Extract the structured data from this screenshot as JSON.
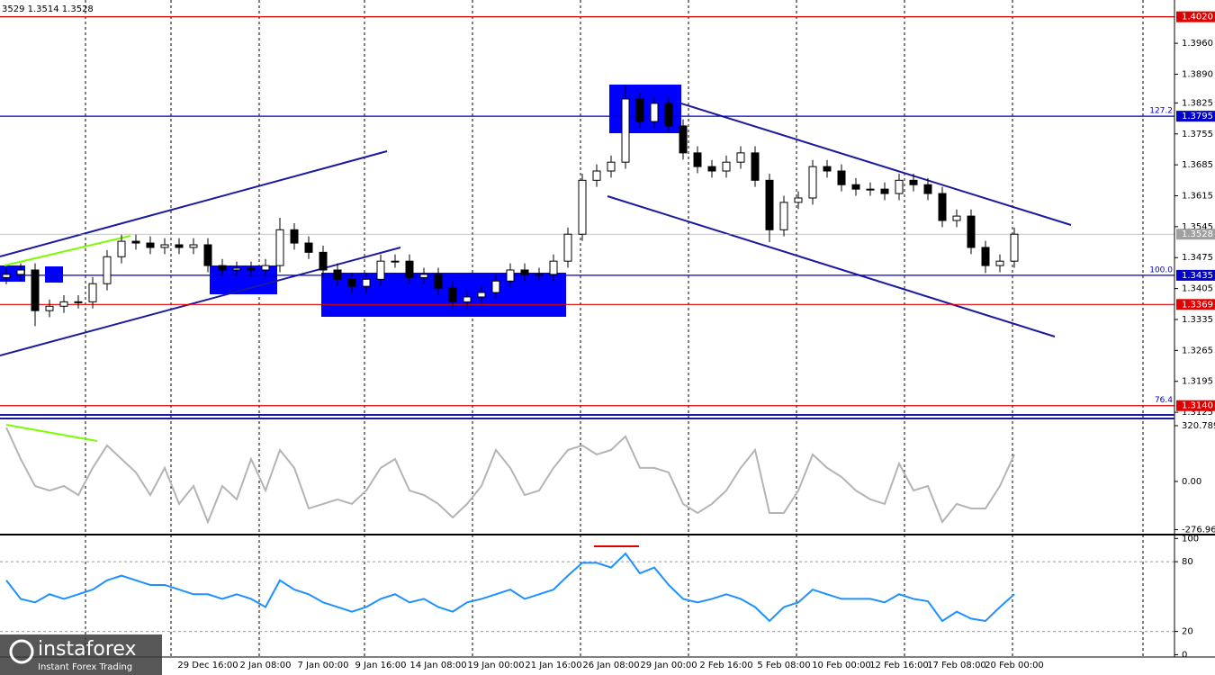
{
  "header": "3529 1.3514 1.3528",
  "logo": {
    "brand": "instaforex",
    "tagline": "Instant Forex Trading"
  },
  "chart_data": [
    {
      "type": "candlestick",
      "categories": [
        null,
        null,
        null,
        null,
        null,
        null,
        null,
        null,
        null,
        null,
        null,
        null,
        null,
        null,
        "29 Dec 16:00",
        null,
        null,
        null,
        "2 Jan 08:00",
        null,
        null,
        null,
        "7 Jan 00:00",
        null,
        null,
        null,
        "9 Jan 16:00",
        null,
        null,
        null,
        "14 Jan 08:00",
        null,
        null,
        null,
        "19 Jan 00:00",
        null,
        null,
        null,
        "21 Jan 16:00",
        null,
        null,
        null,
        "26 Jan 08:00",
        null,
        null,
        null,
        "29 Jan 00:00",
        null,
        null,
        null,
        "2 Feb 16:00",
        null,
        null,
        null,
        "5 Feb 08:00",
        null,
        null,
        null,
        "10 Feb 00:00",
        null,
        null,
        null,
        "12 Feb 16:00",
        null,
        null,
        null,
        "17 Feb 08:00",
        null,
        null,
        null,
        "20 Feb 00:00"
      ],
      "open": [
        1.343,
        1.3437,
        1.3447,
        1.3355,
        1.3365,
        1.3375,
        1.3375,
        1.3416,
        1.3477,
        1.3512,
        1.3508,
        1.3498,
        1.3504,
        1.3498,
        1.3504,
        1.3457,
        1.3447,
        1.3451,
        1.3447,
        1.3457,
        1.3538,
        1.3508,
        1.3487,
        1.3447,
        1.3426,
        1.341,
        1.3426,
        1.3467,
        1.3467,
        1.343,
        1.3437,
        1.3406,
        1.3375,
        1.3386,
        1.3396,
        1.3422,
        1.3447,
        1.3437,
        1.3437,
        1.3467,
        1.3528,
        1.365,
        1.3671,
        1.3691,
        1.3834,
        1.3783,
        1.3824,
        1.3773,
        1.3712,
        1.3681,
        1.3671,
        1.3691,
        1.3712,
        1.365,
        1.3538,
        1.36,
        1.361,
        1.3681,
        1.3671,
        1.364,
        1.363,
        1.363,
        1.362,
        1.365,
        1.364,
        1.362,
        1.3559,
        1.3569,
        1.3498,
        1.3457,
        1.3467
      ],
      "high": [
        1.3452,
        1.3462,
        1.3462,
        1.338,
        1.339,
        1.339,
        1.3431,
        1.3492,
        1.3527,
        1.3527,
        1.3523,
        1.3519,
        1.3519,
        1.3519,
        1.3519,
        1.3472,
        1.3466,
        1.3466,
        1.3472,
        1.3565,
        1.3553,
        1.3523,
        1.3502,
        1.3462,
        1.3441,
        1.3441,
        1.3482,
        1.3482,
        1.3482,
        1.3452,
        1.3452,
        1.3421,
        1.3401,
        1.3411,
        1.3437,
        1.3462,
        1.3462,
        1.3452,
        1.3482,
        1.3543,
        1.3665,
        1.3686,
        1.3706,
        1.3866,
        1.3849,
        1.3839,
        1.3839,
        1.3788,
        1.3727,
        1.3696,
        1.3706,
        1.3727,
        1.3727,
        1.3665,
        1.3615,
        1.3625,
        1.3696,
        1.3696,
        1.3686,
        1.3655,
        1.3645,
        1.3645,
        1.3665,
        1.3665,
        1.3655,
        1.3635,
        1.3584,
        1.3584,
        1.3513,
        1.3482,
        1.3543
      ],
      "low": [
        1.3415,
        1.3422,
        1.332,
        1.334,
        1.335,
        1.336,
        1.336,
        1.3401,
        1.3462,
        1.3493,
        1.3483,
        1.3483,
        1.3483,
        1.3483,
        1.3442,
        1.3432,
        1.3432,
        1.3432,
        1.3432,
        1.3442,
        1.3493,
        1.3472,
        1.3432,
        1.3411,
        1.3395,
        1.3395,
        1.3411,
        1.3452,
        1.3415,
        1.3415,
        1.3391,
        1.336,
        1.336,
        1.3371,
        1.3381,
        1.3407,
        1.3422,
        1.3422,
        1.3422,
        1.3452,
        1.3513,
        1.3635,
        1.3656,
        1.3676,
        1.3768,
        1.3768,
        1.3758,
        1.3697,
        1.3666,
        1.3656,
        1.3656,
        1.3676,
        1.3635,
        1.351,
        1.3523,
        1.3585,
        1.3595,
        1.3656,
        1.3625,
        1.3615,
        1.3615,
        1.3605,
        1.3605,
        1.3625,
        1.3605,
        1.3544,
        1.3544,
        1.3483,
        1.344,
        1.3442,
        1.3452
      ],
      "close": [
        1.3437,
        1.3447,
        1.3355,
        1.3365,
        1.3375,
        1.3375,
        1.3416,
        1.3477,
        1.3512,
        1.3508,
        1.3498,
        1.3504,
        1.3498,
        1.3504,
        1.3457,
        1.3447,
        1.3451,
        1.3447,
        1.3457,
        1.3538,
        1.3508,
        1.3487,
        1.3447,
        1.3426,
        1.341,
        1.3426,
        1.3467,
        1.3467,
        1.343,
        1.3437,
        1.3406,
        1.3375,
        1.3386,
        1.3396,
        1.3422,
        1.3447,
        1.3437,
        1.3437,
        1.3467,
        1.3528,
        1.365,
        1.3671,
        1.3691,
        1.3834,
        1.3783,
        1.3824,
        1.3773,
        1.3712,
        1.3681,
        1.3671,
        1.3691,
        1.3712,
        1.365,
        1.3538,
        1.36,
        1.361,
        1.3681,
        1.3671,
        1.364,
        1.363,
        1.363,
        1.362,
        1.365,
        1.364,
        1.362,
        1.3559,
        1.3569,
        1.3498,
        1.3457,
        1.3467,
        1.3528
      ],
      "ylim": [
        1.3115,
        1.4058
      ],
      "yticks": [
        {
          "value": 1.396,
          "label": "1.3960"
        },
        {
          "value": 1.389,
          "label": "1.3890"
        },
        1.3825,
        1.3755,
        1.3685,
        1.3615,
        1.3545,
        1.3475,
        1.3405,
        1.3335,
        1.3265,
        1.3195,
        1.3125
      ],
      "levels": [
        {
          "value": 1.402,
          "label": "1.4020",
          "color": "#e00000"
        },
        {
          "value": 1.3795,
          "label": "1.3795",
          "color": "#0000c8",
          "note": "127.2"
        },
        {
          "value": 1.3528,
          "label": "1.3528",
          "color": "#a0a0a0"
        },
        {
          "value": 1.3435,
          "label": "1.3435",
          "color": "#0000c8",
          "note": "100.0"
        },
        {
          "value": 1.3369,
          "label": "1.3369",
          "color": "#e00000"
        },
        {
          "value": 1.314,
          "label": "1.3140",
          "color": "#e00000",
          "note": "76.4"
        }
      ]
    },
    {
      "type": "line",
      "color": "#b4b4b4",
      "values": [
        310,
        129,
        -26,
        -52,
        -26,
        -78,
        78,
        207,
        129,
        52,
        -78,
        78,
        -129,
        -26,
        -233,
        -26,
        -103,
        129,
        -52,
        181,
        78,
        -155,
        -129,
        -103,
        -129,
        -52,
        78,
        129,
        -52,
        -78,
        -129,
        -207,
        -129,
        -26,
        181,
        78,
        -78,
        -52,
        78,
        181,
        207,
        155,
        181,
        259,
        78,
        78,
        52,
        -129,
        -181,
        -129,
        -52,
        78,
        181,
        -181,
        -181,
        -52,
        155,
        78,
        26,
        -52,
        -103,
        -129,
        103,
        -52,
        -26,
        -233,
        -129,
        -155,
        -155,
        -26,
        155
      ],
      "ylim": [
        -295,
        362
      ],
      "yticks": [
        320.7896,
        {
          "value": 0,
          "label": "0.00"
        },
        {
          "value": -276.96,
          "label": "-276.960"
        }
      ]
    },
    {
      "type": "line",
      "color": "#1e90ff",
      "values": [
        64,
        48,
        45,
        52,
        48,
        52,
        56,
        64,
        68,
        64,
        60,
        60,
        56,
        52,
        52,
        48,
        52,
        48,
        41,
        64,
        56,
        52,
        45,
        41,
        37,
        41,
        48,
        52,
        45,
        48,
        41,
        37,
        45,
        48,
        52,
        56,
        48,
        52,
        56,
        68,
        79,
        79,
        75,
        87,
        70,
        75,
        60,
        48,
        45,
        48,
        52,
        48,
        41,
        29,
        41,
        45,
        56,
        52,
        48,
        48,
        48,
        45,
        52,
        48,
        46,
        29,
        37,
        31,
        29,
        41,
        52
      ],
      "ylim": [
        -2,
        101
      ],
      "yticks": [
        100,
        80,
        20,
        0
      ],
      "grid": [
        80,
        20
      ]
    }
  ]
}
